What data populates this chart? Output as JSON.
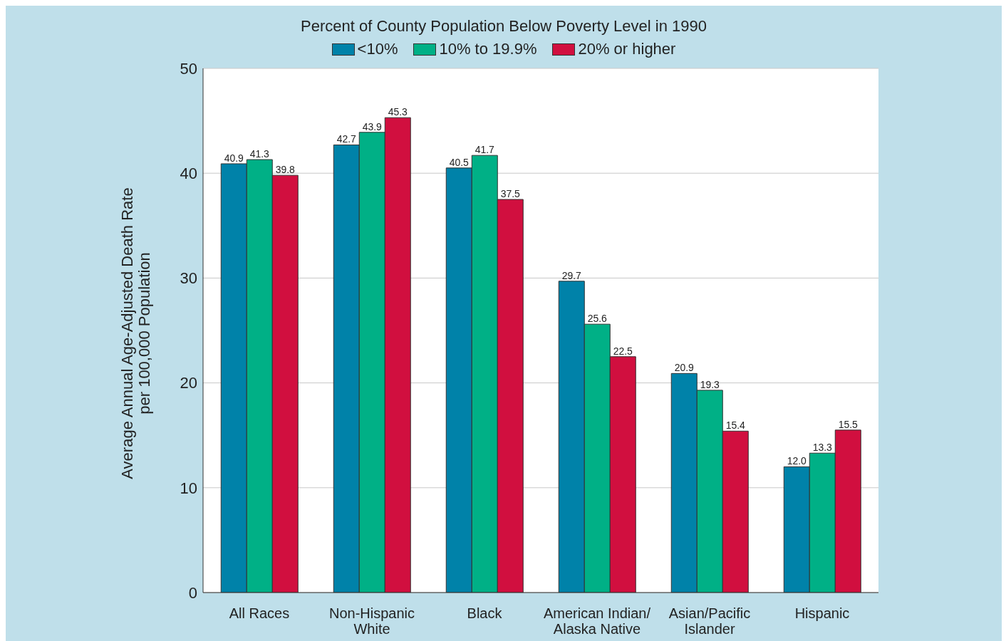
{
  "chart_data": {
    "type": "bar",
    "legend_title": "Percent of County Population Below Poverty Level in 1990",
    "ylabel": "Average Annual Age-Adjusted Death Rate\nper 100,000 Population",
    "categories": [
      "All Races",
      "Non-Hispanic White",
      "Black",
      "American Indian/ Alaska Native",
      "Asian/Pacific Islander",
      "Hispanic"
    ],
    "series": [
      {
        "name": "<10%",
        "color": "#0082a9",
        "values": [
          40.9,
          42.7,
          40.5,
          29.7,
          20.9,
          12.0
        ],
        "value_labels": [
          "40.9",
          "42.7",
          "40.5",
          "29.7",
          "20.9",
          "12.0"
        ]
      },
      {
        "name": "10% to 19.9%",
        "color": "#00b086",
        "values": [
          41.3,
          43.9,
          41.7,
          25.6,
          19.3,
          13.3
        ],
        "value_labels": [
          "41.3",
          "43.9",
          "41.7",
          "25.6",
          "19.3",
          "13.3"
        ]
      },
      {
        "name": "20% or higher",
        "color": "#d10f3f",
        "values": [
          39.8,
          45.3,
          37.5,
          22.5,
          15.4,
          15.5
        ],
        "value_labels": [
          "39.8",
          "45.3",
          "37.5",
          "22.5",
          "15.4",
          "15.5"
        ]
      }
    ],
    "ylim": [
      0,
      50
    ],
    "yticks": [
      0,
      10,
      20,
      30,
      40,
      50
    ],
    "grid": "y",
    "legend": "top"
  }
}
